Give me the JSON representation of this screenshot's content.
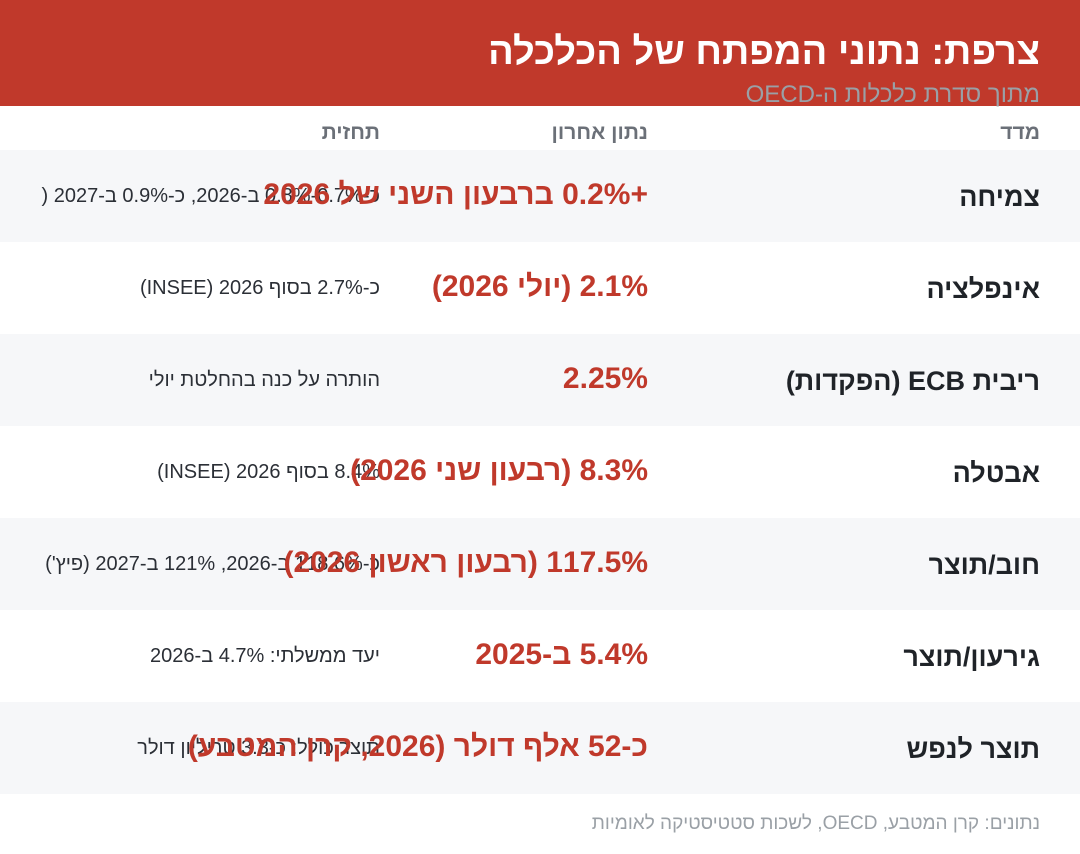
{
  "header": {
    "title": "צרפת: נתוני המפתח של הכלכלה",
    "subtitle": "מתוך סדרת כלכלות ה-OECD",
    "background_color": "#c0392b"
  },
  "columns": {
    "measure": "מדד",
    "latest": "נתון אחרון",
    "forecast": "תחזית"
  },
  "rows": [
    {
      "measure": "צמיחה",
      "latest": "+0.2% ברבעון השני של 2026",
      "forecast": "כ-0.7%-0.8% ב-2026, כ-0.9% ב-2027 ("
    },
    {
      "measure": "אינפלציה",
      "latest": "2.1% (יולי 2026)",
      "forecast": "כ-2.7% בסוף 2026 (INSEE)"
    },
    {
      "measure": "ריבית ECB (הפקדות)",
      "latest": "2.25%",
      "forecast": "הותרה על כנה בהחלטת יולי"
    },
    {
      "measure": "אבטלה",
      "latest": "8.3% (רבעון שני 2026)",
      "forecast": "8.4% בסוף 2026 (INSEE)"
    },
    {
      "measure": "חוב/תוצר",
      "latest": "117.5% (רבעון ראשון 2026)",
      "forecast": "כ-118.6% ב-2026, 121% ב-2027 (פיץ')"
    },
    {
      "measure": "גירעון/תוצר",
      "latest": "5.4% ב-2025",
      "forecast": "יעד ממשלתי: 4.7% ב-2026"
    },
    {
      "measure": "תוצר לנפש",
      "latest": "כ-52 אלף דולר (2026, קרן המטבע)",
      "forecast": "תוצר כולל: כ-3.3 טריליון דולר"
    }
  ],
  "source": "נתונים: קרן המטבע, OECD, לשכות סטטיסטיקה לאומיות",
  "colors": {
    "accent": "#c0392b",
    "row_shade": "#f6f7f9",
    "muted_text": "#9aa0a6"
  }
}
